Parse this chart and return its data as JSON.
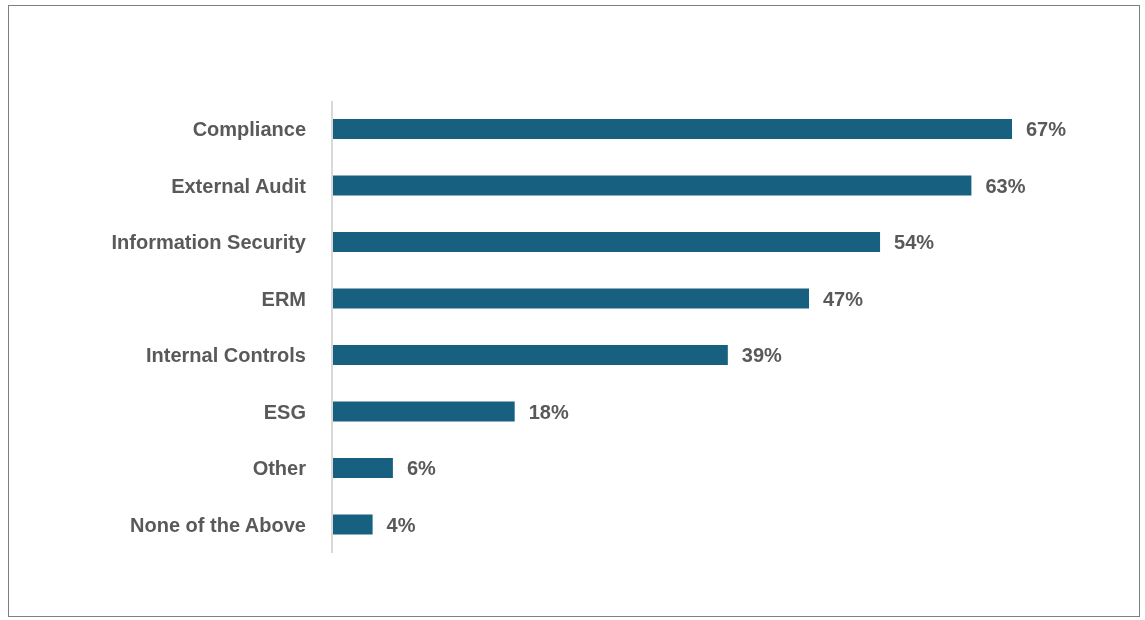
{
  "chart_data": {
    "type": "bar",
    "orientation": "horizontal",
    "categories": [
      "Compliance",
      "External Audit",
      "Information Security",
      "ERM",
      "Internal Controls",
      "ESG",
      "Other",
      "None of the Above"
    ],
    "values": [
      67,
      63,
      54,
      47,
      39,
      18,
      6,
      4
    ],
    "value_labels": [
      "67%",
      "63%",
      "54%",
      "47%",
      "39%",
      "18%",
      "6%",
      "4%"
    ],
    "color": "#17607f"
  }
}
